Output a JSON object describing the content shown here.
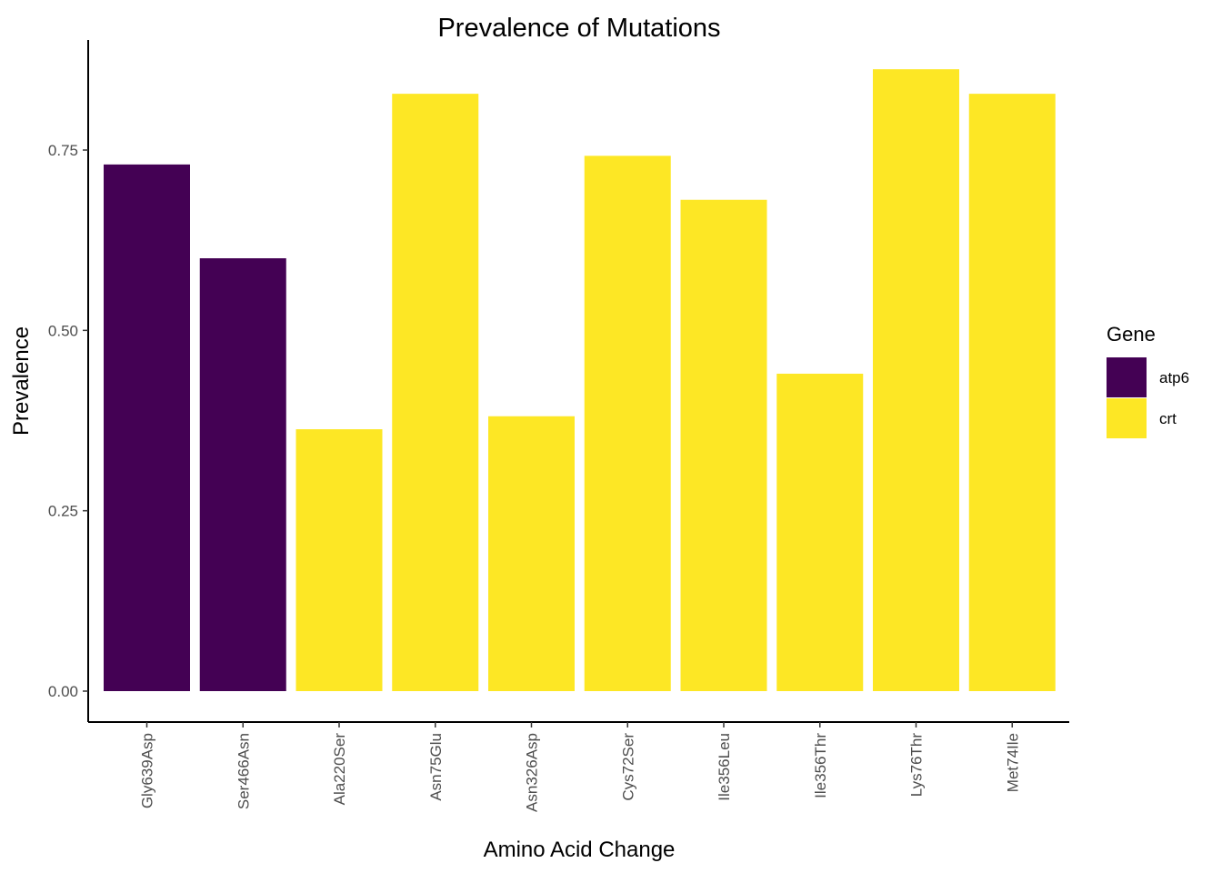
{
  "chart_data": {
    "type": "bar",
    "title": "Prevalence of Mutations",
    "xlabel": "Amino Acid Change",
    "ylabel": "Prevalence",
    "ylim": [
      -0.04,
      0.9
    ],
    "yticks": [
      0.0,
      0.25,
      0.5,
      0.75
    ],
    "ytick_labels": [
      "0.00",
      "0.25",
      "0.50",
      "0.75"
    ],
    "grid": false,
    "legend": {
      "title": "Gene",
      "position": "right",
      "entries": [
        {
          "label": "atp6",
          "color": "#440154"
        },
        {
          "label": "crt",
          "color": "#FDE725"
        }
      ]
    },
    "categories": [
      "Gly639Asp",
      "Ser466Asn",
      "Ala220Ser",
      "Asn75Glu",
      "Asn326Asp",
      "Cys72Ser",
      "Ile356Leu",
      "Ile356Thr",
      "Lys76Thr",
      "Met74Ile"
    ],
    "values": [
      0.73,
      0.6,
      0.363,
      0.828,
      0.381,
      0.742,
      0.681,
      0.44,
      0.862,
      0.828
    ],
    "gene": [
      "atp6",
      "atp6",
      "crt",
      "crt",
      "crt",
      "crt",
      "crt",
      "crt",
      "crt",
      "crt"
    ]
  }
}
